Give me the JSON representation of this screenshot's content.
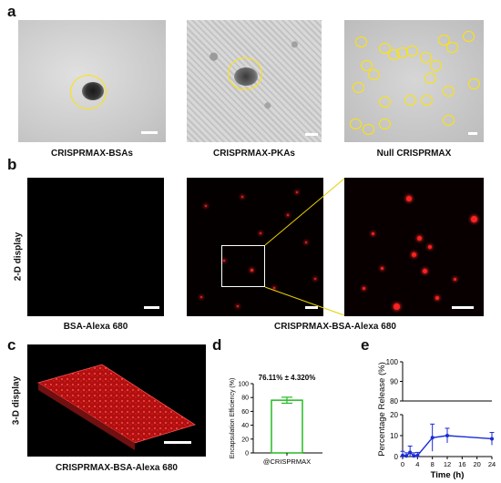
{
  "panel_labels": {
    "a": "a",
    "b": "b",
    "c": "c",
    "d": "d",
    "e": "e"
  },
  "row_a": {
    "captions": [
      "CRISPRMAX-BSAs",
      "CRISPRMAX-PKAs",
      "Null CRISPRMAX"
    ]
  },
  "row_b": {
    "side_label": "2-D display",
    "caption_left": "BSA-Alexa 680",
    "caption_right": "CRISPRMAX-BSA-Alexa 680"
  },
  "row_c": {
    "side_label": "3-D display",
    "caption": "CRISPRMAX-BSA-Alexa 680"
  },
  "colors": {
    "tem_circle": "#ffe400",
    "fluor_red": "#ff2020",
    "bar_green": "#22bb22",
    "line_blue": "#1a2bd6"
  },
  "chart_data": [
    {
      "type": "bar",
      "categories": [
        "@CRISPRMAX"
      ],
      "values": [
        76.11
      ],
      "error": [
        4.32
      ],
      "annotation": "76.11% ± 4.320%",
      "ylabel": "Encapsulation Efficiency (%)",
      "xlabel": "",
      "ylim": [
        0,
        100
      ],
      "yticks": [
        "0",
        "20",
        "40",
        "60",
        "80",
        "100"
      ]
    },
    {
      "type": "line",
      "ylabel": "Percentage Release (%)",
      "xlabel": "Time (h)",
      "xlim": [
        0,
        24
      ],
      "xticks": [
        "0",
        "4",
        "8",
        "12",
        "16",
        "20",
        "24"
      ],
      "y_axis_break": true,
      "yticks_lower": [
        "0",
        "10",
        "20"
      ],
      "yticks_upper": [
        "80",
        "90",
        "100"
      ],
      "x": [
        0,
        1,
        2,
        3,
        4,
        8,
        12,
        24
      ],
      "y": [
        0.5,
        0.3,
        2.0,
        0.3,
        0.5,
        9.0,
        10.0,
        8.5
      ],
      "error": [
        2.0,
        1.5,
        3.0,
        1.5,
        1.5,
        6.5,
        3.5,
        3.0
      ]
    }
  ]
}
